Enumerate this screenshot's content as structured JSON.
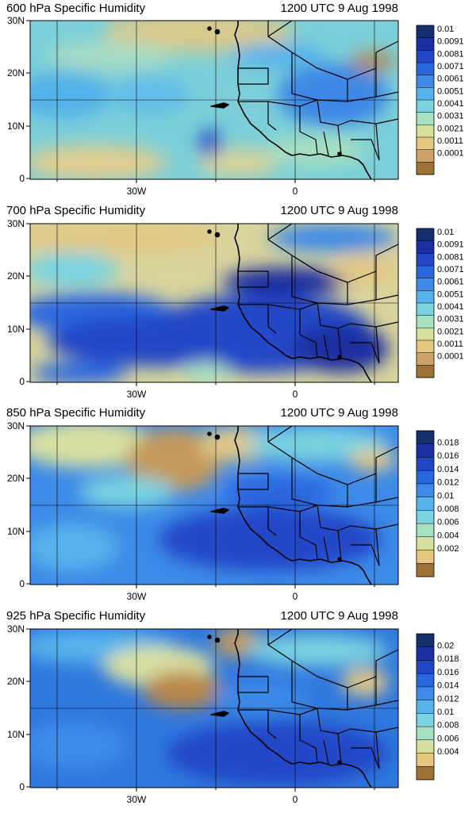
{
  "panels": [
    {
      "level": "600",
      "title": "600 hPa Specific Humidity",
      "time": "1200 UTC 9 Aug 1998",
      "lat_ticks": [
        "30N",
        "20N",
        "10N",
        "0"
      ],
      "lon_ticks": [
        "30W",
        "0"
      ],
      "colorbar_labels": [
        "0.01",
        "0.0091",
        "0.0081",
        "0.0071",
        "0.0061",
        "0.0051",
        "0.0041",
        "0.0031",
        "0.0021",
        "0.0011",
        "0.0001"
      ],
      "colorbar_colors": [
        "#12306b",
        "#1a2fa0",
        "#2146c8",
        "#2a66e0",
        "#3d8ae8",
        "#56b3ec",
        "#7ad3e0",
        "#a6e0c0",
        "#d8e0a0",
        "#e6c780",
        "#cea266",
        "#9e7235"
      ]
    },
    {
      "level": "700",
      "title": "700 hPa Specific Humidity",
      "time": "1200 UTC 9 Aug 1998",
      "lat_ticks": [
        "30N",
        "20N",
        "10N",
        "0"
      ],
      "lon_ticks": [
        "30W",
        "0"
      ],
      "colorbar_labels": [
        "0.01",
        "0.0091",
        "0.0081",
        "0.0071",
        "0.0061",
        "0.0051",
        "0.0041",
        "0.0031",
        "0.0021",
        "0.0011",
        "0.0001"
      ],
      "colorbar_colors": [
        "#12306b",
        "#1a2fa0",
        "#2146c8",
        "#2a66e0",
        "#3d8ae8",
        "#56b3ec",
        "#7ad3e0",
        "#a6e0c0",
        "#d8e0a0",
        "#e6c780",
        "#cea266",
        "#9e7235"
      ]
    },
    {
      "level": "850",
      "title": "850 hPa Specific Humidity",
      "time": "1200 UTC 9 Aug 1998",
      "lat_ticks": [
        "30N",
        "20N",
        "10N",
        "0"
      ],
      "lon_ticks": [
        "30W",
        "0"
      ],
      "colorbar_labels": [
        "0.018",
        "0.016",
        "0.014",
        "0.012",
        "0.01",
        "0.008",
        "0.006",
        "0.004",
        "0.002"
      ],
      "colorbar_colors": [
        "#12306b",
        "#1a2fa0",
        "#2146c8",
        "#2a66e0",
        "#3d8ae8",
        "#56b3ec",
        "#7ad3e0",
        "#a6e0c0",
        "#d8e0a0",
        "#e6c780",
        "#9e7235"
      ]
    },
    {
      "level": "925",
      "title": "925 hPa Specific Humidity",
      "time": "1200 UTC 9 Aug 1998",
      "lat_ticks": [
        "30N",
        "20N",
        "10N",
        "0"
      ],
      "lon_ticks": [
        "30W",
        "0"
      ],
      "colorbar_labels": [
        "0.02",
        "0.018",
        "0.016",
        "0.014",
        "0.012",
        "0.01",
        "0.008",
        "0.006",
        "0.004"
      ],
      "colorbar_colors": [
        "#12306b",
        "#1a2fa0",
        "#2146c8",
        "#2a66e0",
        "#3d8ae8",
        "#56b3ec",
        "#7ad3e0",
        "#a6e0c0",
        "#d8e0a0",
        "#e6c780",
        "#9e7235"
      ]
    }
  ]
}
